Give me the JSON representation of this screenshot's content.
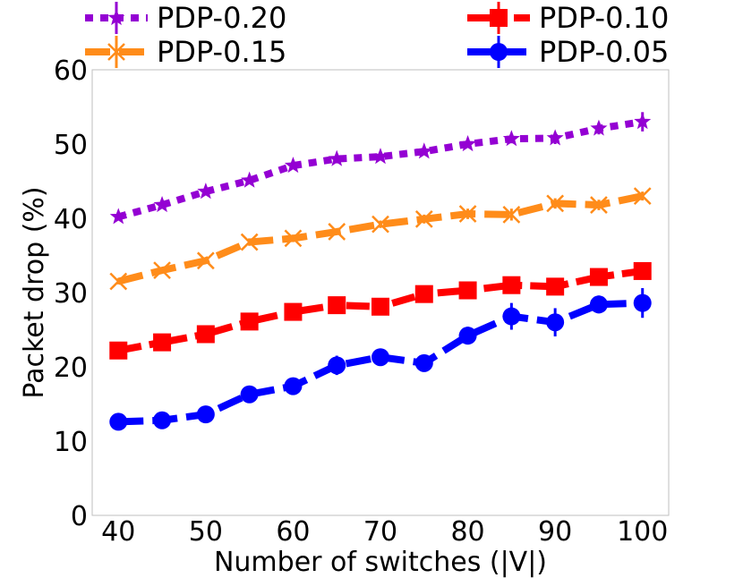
{
  "chart_data": {
    "type": "line",
    "xlabel": "Number of switches (|V|)",
    "ylabel": "Packet drop (%)",
    "xlim": [
      37,
      103
    ],
    "ylim": [
      0,
      60
    ],
    "xticks": [
      40,
      50,
      60,
      70,
      80,
      90,
      100
    ],
    "yticks": [
      0,
      10,
      20,
      30,
      40,
      50,
      60
    ],
    "grid": false,
    "legend_position": "top",
    "x": [
      40,
      45,
      50,
      55,
      60,
      65,
      70,
      75,
      80,
      85,
      90,
      95,
      100
    ],
    "series": [
      {
        "name": "PDP-0.20",
        "color": "#9400D3",
        "marker": "star",
        "linestyle": "dotted",
        "values": [
          40.2,
          41.8,
          43.6,
          45.1,
          47.1,
          48.0,
          48.3,
          49.0,
          50.0,
          50.7,
          50.8,
          52.1,
          53.0
        ],
        "errors": [
          0.4,
          0.4,
          0.5,
          0.5,
          0.5,
          0.6,
          0.5,
          0.5,
          0.5,
          0.6,
          0.8,
          0.8,
          1.3
        ]
      },
      {
        "name": "PDP-0.15",
        "color": "#FF8C1A",
        "marker": "x",
        "linestyle": "dashed",
        "values": [
          31.5,
          33.0,
          34.3,
          36.8,
          37.3,
          38.2,
          39.2,
          39.9,
          40.6,
          40.5,
          42.0,
          41.8,
          43.0
        ],
        "errors": [
          0.4,
          0.4,
          0.4,
          0.5,
          0.5,
          0.4,
          0.5,
          0.6,
          0.7,
          0.8,
          0.7,
          0.7,
          0.6
        ]
      },
      {
        "name": "PDP-0.10",
        "color": "#FF0000",
        "marker": "square",
        "linestyle": "dashdot",
        "values": [
          22.2,
          23.3,
          24.4,
          26.1,
          27.4,
          28.3,
          28.1,
          29.8,
          30.3,
          31.0,
          30.8,
          32.1,
          32.9
        ],
        "errors": [
          0.5,
          0.5,
          0.5,
          0.6,
          0.6,
          0.6,
          0.5,
          0.7,
          0.7,
          0.8,
          0.9,
          0.9,
          1.0
        ]
      },
      {
        "name": "PDP-0.05",
        "color": "#0000FF",
        "marker": "circle",
        "linestyle": "dashed",
        "values": [
          12.6,
          12.8,
          13.6,
          16.3,
          17.4,
          20.2,
          21.3,
          20.5,
          24.2,
          26.8,
          26.0,
          28.4,
          28.6
        ],
        "errors": [
          0.5,
          0.5,
          0.5,
          0.6,
          0.6,
          1.3,
          0.8,
          0.6,
          1.2,
          1.8,
          1.9,
          1.2,
          2.0
        ]
      }
    ]
  }
}
